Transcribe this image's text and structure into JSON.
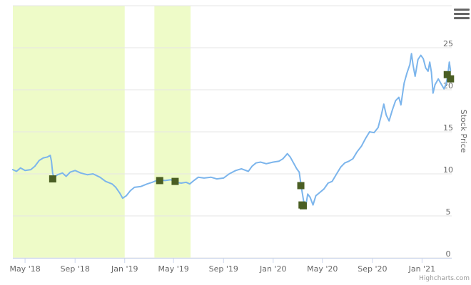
{
  "chart_data": {
    "type": "line",
    "ylabel": "Stock Price",
    "ylim": [
      0,
      30
    ],
    "y_ticks": [
      0,
      5,
      10,
      15,
      20,
      25
    ],
    "x_range": [
      "2018-04-01",
      "2021-03-15"
    ],
    "x_ticks": [
      {
        "date": "2018-05-01",
        "label": "May '18"
      },
      {
        "date": "2018-09-01",
        "label": "Sep '18"
      },
      {
        "date": "2019-01-01",
        "label": "Jan '19"
      },
      {
        "date": "2019-05-01",
        "label": "May '19"
      },
      {
        "date": "2019-09-01",
        "label": "Sep '19"
      },
      {
        "date": "2020-01-01",
        "label": "Jan '20"
      },
      {
        "date": "2020-05-01",
        "label": "May '20"
      },
      {
        "date": "2020-09-01",
        "label": "Sep '20"
      },
      {
        "date": "2021-01-01",
        "label": "Jan '21"
      }
    ],
    "grid": true,
    "plot_bands": [
      {
        "from": "2018-04-01",
        "to": "2019-01-01",
        "color": "#eefbc8"
      },
      {
        "from": "2019-03-15",
        "to": "2019-06-12",
        "color": "#eefbc8"
      }
    ],
    "series": [
      {
        "line_color": "#7cb5ec",
        "points": [
          [
            "2018-04-01",
            10.5
          ],
          [
            "2018-04-10",
            10.3
          ],
          [
            "2018-04-20",
            10.7
          ],
          [
            "2018-05-01",
            10.4
          ],
          [
            "2018-05-15",
            10.5
          ],
          [
            "2018-05-25",
            10.9
          ],
          [
            "2018-06-05",
            11.6
          ],
          [
            "2018-06-15",
            11.9
          ],
          [
            "2018-06-25",
            12.0
          ],
          [
            "2018-07-02",
            12.2
          ],
          [
            "2018-07-05",
            11.5
          ],
          [
            "2018-07-08",
            10.0
          ],
          [
            "2018-07-12",
            9.6
          ],
          [
            "2018-07-20",
            9.9
          ],
          [
            "2018-08-01",
            10.1
          ],
          [
            "2018-08-10",
            9.7
          ],
          [
            "2018-08-20",
            10.2
          ],
          [
            "2018-09-01",
            10.4
          ],
          [
            "2018-09-15",
            10.1
          ],
          [
            "2018-10-01",
            9.9
          ],
          [
            "2018-10-15",
            10.0
          ],
          [
            "2018-11-01",
            9.6
          ],
          [
            "2018-11-15",
            9.1
          ],
          [
            "2018-12-01",
            8.8
          ],
          [
            "2018-12-10",
            8.4
          ],
          [
            "2018-12-20",
            7.7
          ],
          [
            "2018-12-27",
            7.1
          ],
          [
            "2019-01-05",
            7.4
          ],
          [
            "2019-01-15",
            8.0
          ],
          [
            "2019-01-25",
            8.4
          ],
          [
            "2019-02-10",
            8.5
          ],
          [
            "2019-02-25",
            8.8
          ],
          [
            "2019-03-10",
            9.0
          ],
          [
            "2019-03-25",
            9.3
          ],
          [
            "2019-04-10",
            9.2
          ],
          [
            "2019-04-25",
            9.3
          ],
          [
            "2019-05-05",
            9.0
          ],
          [
            "2019-05-20",
            8.9
          ],
          [
            "2019-06-01",
            9.0
          ],
          [
            "2019-06-10",
            8.8
          ],
          [
            "2019-06-20",
            9.2
          ],
          [
            "2019-07-01",
            9.6
          ],
          [
            "2019-07-15",
            9.5
          ],
          [
            "2019-08-01",
            9.6
          ],
          [
            "2019-08-15",
            9.4
          ],
          [
            "2019-09-01",
            9.5
          ],
          [
            "2019-09-15",
            10.0
          ],
          [
            "2019-10-01",
            10.4
          ],
          [
            "2019-10-15",
            10.6
          ],
          [
            "2019-11-01",
            10.3
          ],
          [
            "2019-11-10",
            10.9
          ],
          [
            "2019-11-20",
            11.3
          ],
          [
            "2019-12-01",
            11.4
          ],
          [
            "2019-12-15",
            11.2
          ],
          [
            "2020-01-01",
            11.4
          ],
          [
            "2020-01-15",
            11.5
          ],
          [
            "2020-01-25",
            11.8
          ],
          [
            "2020-02-05",
            12.4
          ],
          [
            "2020-02-12",
            12.0
          ],
          [
            "2020-02-20",
            11.3
          ],
          [
            "2020-02-28",
            10.6
          ],
          [
            "2020-03-05",
            10.2
          ],
          [
            "2020-03-10",
            8.5
          ],
          [
            "2020-03-15",
            7.0
          ],
          [
            "2020-03-18",
            6.2
          ],
          [
            "2020-03-22",
            6.4
          ],
          [
            "2020-03-26",
            7.6
          ],
          [
            "2020-04-01",
            7.2
          ],
          [
            "2020-04-08",
            6.3
          ],
          [
            "2020-04-15",
            7.4
          ],
          [
            "2020-04-25",
            7.8
          ],
          [
            "2020-05-05",
            8.2
          ],
          [
            "2020-05-15",
            8.9
          ],
          [
            "2020-05-25",
            9.1
          ],
          [
            "2020-06-05",
            10.0
          ],
          [
            "2020-06-15",
            10.8
          ],
          [
            "2020-06-25",
            11.3
          ],
          [
            "2020-07-05",
            11.5
          ],
          [
            "2020-07-15",
            11.8
          ],
          [
            "2020-07-25",
            12.6
          ],
          [
            "2020-08-05",
            13.3
          ],
          [
            "2020-08-15",
            14.2
          ],
          [
            "2020-08-25",
            15.0
          ],
          [
            "2020-09-05",
            14.9
          ],
          [
            "2020-09-15",
            15.5
          ],
          [
            "2020-09-22",
            16.8
          ],
          [
            "2020-09-29",
            18.3
          ],
          [
            "2020-10-05",
            17.0
          ],
          [
            "2020-10-12",
            16.3
          ],
          [
            "2020-10-20",
            17.6
          ],
          [
            "2020-10-28",
            18.7
          ],
          [
            "2020-11-05",
            19.1
          ],
          [
            "2020-11-10",
            18.2
          ],
          [
            "2020-11-18",
            20.8
          ],
          [
            "2020-11-25",
            22.0
          ],
          [
            "2020-12-02",
            23.0
          ],
          [
            "2020-12-06",
            24.3
          ],
          [
            "2020-12-10",
            22.9
          ],
          [
            "2020-12-15",
            21.6
          ],
          [
            "2020-12-22",
            23.6
          ],
          [
            "2020-12-29",
            24.1
          ],
          [
            "2021-01-04",
            23.7
          ],
          [
            "2021-01-10",
            22.6
          ],
          [
            "2021-01-16",
            22.2
          ],
          [
            "2021-01-20",
            23.3
          ],
          [
            "2021-01-24",
            22.1
          ],
          [
            "2021-01-28",
            19.6
          ],
          [
            "2021-02-02",
            20.6
          ],
          [
            "2021-02-10",
            21.3
          ],
          [
            "2021-02-18",
            20.6
          ],
          [
            "2021-02-24",
            20.1
          ],
          [
            "2021-03-01",
            20.7
          ],
          [
            "2021-03-05",
            21.6
          ],
          [
            "2021-03-09",
            23.3
          ],
          [
            "2021-03-12",
            22.3
          ]
        ]
      }
    ],
    "markers": [
      {
        "date": "2018-07-08",
        "y": 9.4
      },
      {
        "date": "2019-03-28",
        "y": 9.2
      },
      {
        "date": "2019-05-05",
        "y": 9.1
      },
      {
        "date": "2020-03-09",
        "y": 8.6
      },
      {
        "date": "2020-03-12",
        "y": 6.3
      },
      {
        "date": "2020-03-15",
        "y": 6.2
      },
      {
        "date": "2021-03-04",
        "y": 21.8
      },
      {
        "date": "2021-03-12",
        "y": 21.3
      }
    ],
    "marker_color": "#4a5e23"
  },
  "credit": "Highcharts.com",
  "menu_icon": "hamburger-icon"
}
